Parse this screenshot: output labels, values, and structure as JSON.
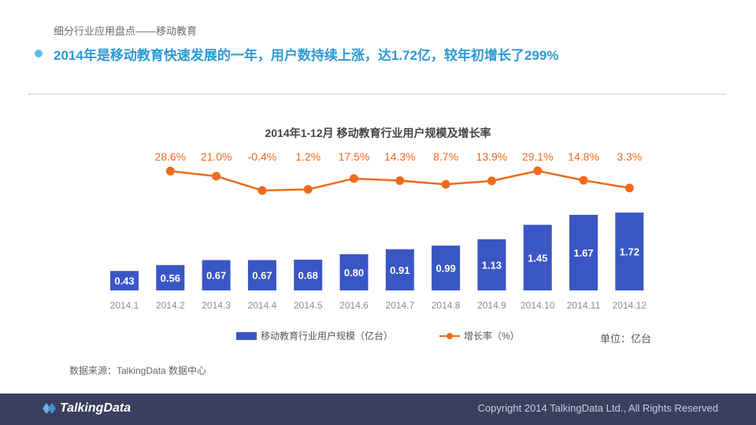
{
  "header": {
    "subtitle": "细分行业应用盘点——移动教育",
    "headline": "2014年是移动教育快速发展的一年，用户数持续上涨，达1.72亿，较年初增长了299%"
  },
  "chart_data": {
    "type": "bar",
    "title": "2014年1-12月 移动教育行业用户规模及增长率",
    "categories": [
      "2014.1",
      "2014.2",
      "2014.3",
      "2014.4",
      "2014.5",
      "2014.6",
      "2014.7",
      "2014.8",
      "2014.9",
      "2014.10",
      "2014.11",
      "2014.12"
    ],
    "series": [
      {
        "name": "移动教育行业用户规模（亿台）",
        "type": "bar",
        "values": [
          0.43,
          0.56,
          0.67,
          0.67,
          0.68,
          0.8,
          0.91,
          0.99,
          1.13,
          1.45,
          1.67,
          1.72
        ],
        "labels": [
          "0.43",
          "0.56",
          "0.67",
          "0.67",
          "0.68",
          "0.80",
          "0.91",
          "0.99",
          "1.13",
          "1.45",
          "1.67",
          "1.72"
        ]
      },
      {
        "name": "增长率（%）",
        "type": "line",
        "values": [
          null,
          28.6,
          21.0,
          -0.4,
          1.2,
          17.5,
          14.3,
          8.7,
          13.9,
          29.1,
          14.8,
          3.3
        ],
        "labels": [
          "",
          "28.6%",
          "21.0%",
          "-0.4%",
          "1.2%",
          "17.5%",
          "14.3%",
          "8.7%",
          "13.9%",
          "29.1%",
          "14.8%",
          "3.3%"
        ]
      }
    ],
    "unit": "单位：亿台",
    "colors": {
      "bar": "#3a56c5",
      "line": "#ee6b1c",
      "axis_text": "#8c8c8c"
    }
  },
  "source": "数据来源：TalkingData 数据中心",
  "footer": {
    "brand": "TalkingData",
    "copyright": "Copyright 2014 TalkingData Ltd., All Rights Reserved"
  }
}
